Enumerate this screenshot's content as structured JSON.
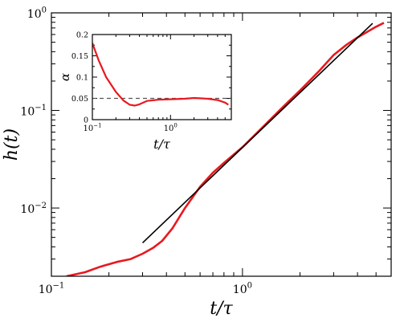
{
  "chart_data": [
    {
      "type": "line",
      "xlabel": "t/τ",
      "ylabel": "h(t)",
      "xscale": "log",
      "yscale": "log",
      "xlim": [
        0.1,
        6.0
      ],
      "ylim": [
        0.002,
        1.0
      ],
      "x_ticks": [
        {
          "value": 0.1,
          "base": "10",
          "exp": "−1"
        },
        {
          "value": 1,
          "base": "10",
          "exp": "0"
        }
      ],
      "y_ticks": [
        {
          "value": 0.01,
          "base": "10",
          "exp": "−2"
        },
        {
          "value": 0.1,
          "base": "10",
          "exp": "−1"
        },
        {
          "value": 1,
          "base": "10",
          "exp": "0"
        }
      ],
      "grid": false,
      "series": [
        {
          "color": "#e8191f",
          "x": [
            0.12,
            0.15,
            0.18,
            0.22,
            0.26,
            0.3,
            0.34,
            0.38,
            0.43,
            0.5,
            0.6,
            0.7,
            0.8,
            1.0,
            1.3,
            1.6,
            2.0,
            2.5,
            3.0,
            3.5,
            4.0,
            4.5,
            5.0,
            5.5
          ],
          "y": [
            0.002,
            0.0022,
            0.0025,
            0.0028,
            0.003,
            0.0034,
            0.0039,
            0.0046,
            0.0062,
            0.01,
            0.0165,
            0.023,
            0.029,
            0.042,
            0.07,
            0.105,
            0.16,
            0.25,
            0.37,
            0.47,
            0.56,
            0.64,
            0.72,
            0.79
          ]
        },
        {
          "color": "#000000",
          "x": [
            0.3,
            4.8
          ],
          "y": [
            0.0044,
            0.78
          ]
        }
      ]
    },
    {
      "type": "line",
      "xlabel": "t/τ",
      "ylabel": "α",
      "xscale": "log",
      "xlim": [
        0.1,
        6.0
      ],
      "ylim": [
        0,
        0.2
      ],
      "x_ticks": [
        {
          "value": 0.1,
          "base": "10",
          "exp": "−1"
        },
        {
          "value": 1,
          "base": "10",
          "exp": "0"
        }
      ],
      "y_ticks": [
        {
          "value": 0,
          "label": "0"
        },
        {
          "value": 0.05,
          "label": "0.05"
        },
        {
          "value": 0.1,
          "label": "0.1"
        },
        {
          "value": 0.15,
          "label": "0.15"
        },
        {
          "value": 0.2,
          "label": "0.2"
        }
      ],
      "grid": false,
      "reference_line": {
        "y": 0.05,
        "style": "dashed",
        "color": "#555555"
      },
      "series": [
        {
          "color": "#e8191f",
          "x": [
            0.1,
            0.12,
            0.15,
            0.2,
            0.25,
            0.3,
            0.35,
            0.4,
            0.5,
            0.7,
            1.0,
            1.5,
            2.0,
            2.5,
            3.0,
            4.0,
            5.0,
            5.5
          ],
          "y": [
            0.18,
            0.14,
            0.1,
            0.065,
            0.045,
            0.035,
            0.033,
            0.036,
            0.044,
            0.047,
            0.048,
            0.049,
            0.051,
            0.05,
            0.049,
            0.046,
            0.04,
            0.035
          ]
        }
      ]
    }
  ]
}
